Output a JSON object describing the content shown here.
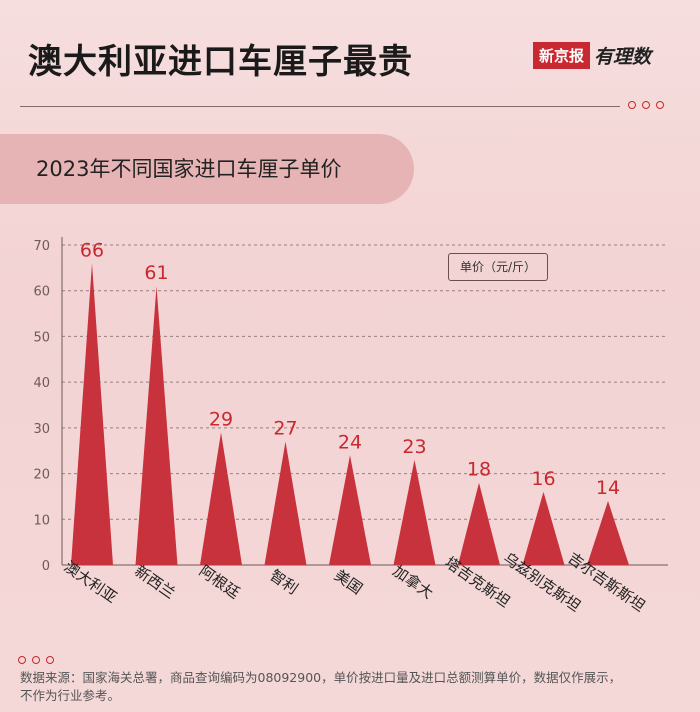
{
  "header": {
    "title": "澳大利亚进口车厘子最贵",
    "logo_box": "新京报",
    "logo_script": "有理数"
  },
  "banner": {
    "text": "2023年不同国家进口车厘子单价"
  },
  "chart_data": {
    "type": "bar",
    "title": "2023年不同国家进口车厘子单价",
    "categories": [
      "澳大利亚",
      "新西兰",
      "阿根廷",
      "智利",
      "美国",
      "加拿大",
      "塔吉克斯坦",
      "乌兹别克斯坦",
      "吉尔吉斯斯坦"
    ],
    "values": [
      66,
      61,
      29,
      27,
      24,
      23,
      18,
      16,
      14
    ],
    "yticks": [
      0,
      10,
      20,
      30,
      40,
      50,
      60,
      70
    ],
    "ylim": [
      0,
      70
    ],
    "unit_label": "单价（元/斤）",
    "grid": true,
    "bar_color": "#c8323c",
    "label_color": "#c8282f"
  },
  "footer": {
    "line1": "数据来源：国家海关总署，商品查询编码为08092900，单价按进口量及进口总额测算单价，数据仅作展示，",
    "line2": "不作为行业参考。"
  }
}
